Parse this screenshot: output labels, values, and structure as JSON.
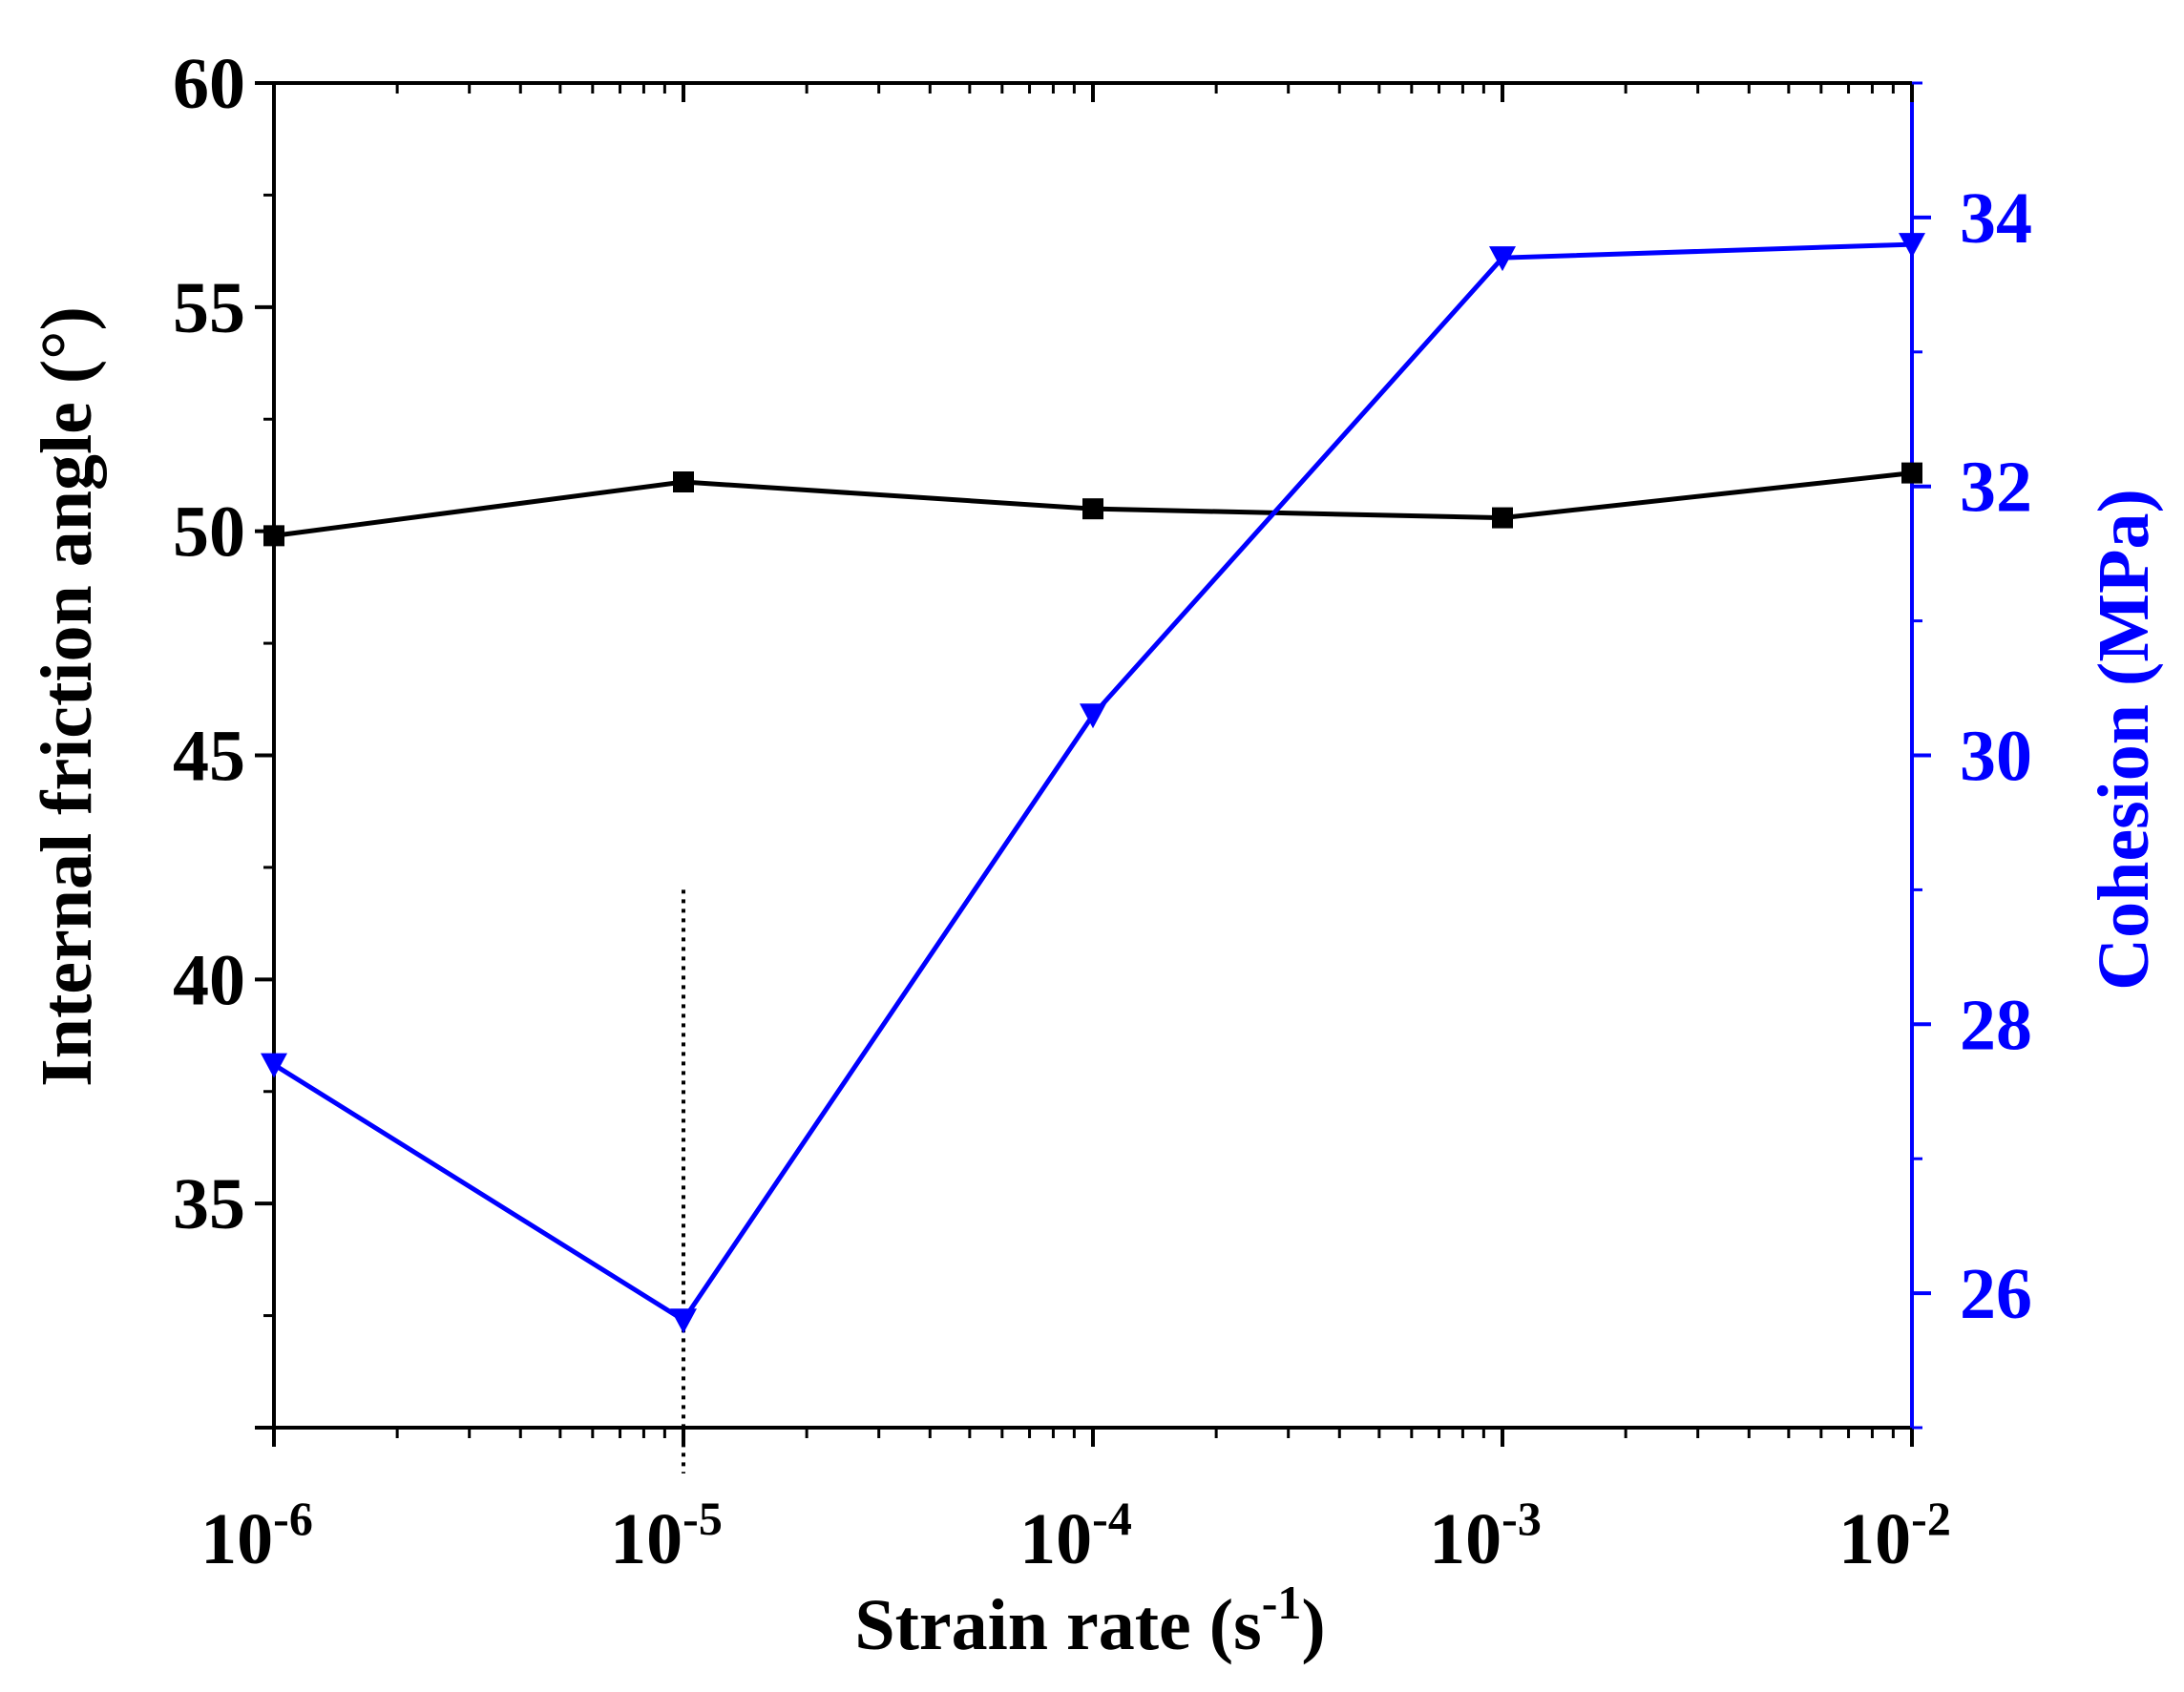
{
  "chart_data": {
    "type": "line",
    "x_scale": "log",
    "xlabel": "Strain rate (s",
    "xlabel_sup": "-1",
    "xlabel_close": ")",
    "xlim": [
      1e-06,
      0.01
    ],
    "x_ticks": [
      {
        "value": 1e-06,
        "base": "10",
        "exp": "-6"
      },
      {
        "value": 1e-05,
        "base": "10",
        "exp": "-5"
      },
      {
        "value": 0.0001,
        "base": "10",
        "exp": "-4"
      },
      {
        "value": 0.001,
        "base": "10",
        "exp": "-3"
      },
      {
        "value": 0.01,
        "base": "10",
        "exp": "-2"
      }
    ],
    "y_left": {
      "label": "Internal friction angle (°)",
      "lim": [
        30,
        60
      ],
      "ticks": [
        "35",
        "40",
        "45",
        "50",
        "55",
        "60"
      ],
      "color": "#000000"
    },
    "y_right": {
      "label": "Cohesion (MPa)",
      "lim": [
        25,
        35
      ],
      "ticks": [
        "26",
        "28",
        "30",
        "32",
        "34"
      ],
      "color": "#0000ff"
    },
    "series": [
      {
        "name": "Internal friction angle",
        "axis": "left",
        "marker": "square",
        "color": "#000000",
        "x": [
          1e-06,
          1e-05,
          0.0001,
          0.001,
          0.01
        ],
        "values": [
          49.9,
          51.1,
          50.5,
          50.3,
          51.3
        ]
      },
      {
        "name": "Cohesion",
        "axis": "right",
        "marker": "triangle-down",
        "color": "#0000ff",
        "x": [
          1e-06,
          1e-05,
          0.0001,
          0.001,
          0.01
        ],
        "values": [
          27.7,
          25.8,
          30.3,
          33.7,
          33.8
        ]
      }
    ],
    "reference_line": {
      "x": 1e-05,
      "y_to": 42,
      "style": "dotted",
      "color": "#000000"
    }
  }
}
